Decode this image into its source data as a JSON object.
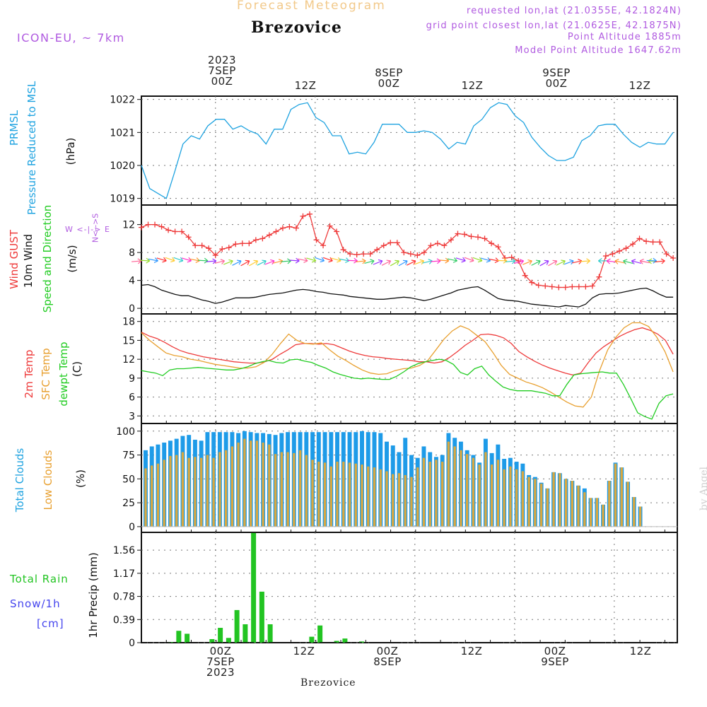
{
  "header": {
    "title": "Forecast Meteogram",
    "location": "Brezovice",
    "model": "ICON-EU, ~ 7km",
    "requested": "requested lon,lat (21.0355E, 42.1824N)",
    "gridpoint": "grid point closest lon,lat (21.0625E, 42.1875N)",
    "altitude": "Point Altitude 1885m",
    "model_altitude": "Model Point Altitude 1647.62m"
  },
  "top_ticks": [
    {
      "line1": "2023",
      "line2": "7SEP",
      "line3": "00Z"
    },
    {
      "line1": "",
      "line2": "",
      "line3": "12Z"
    },
    {
      "line1": "",
      "line2": "8SEP",
      "line3": "00Z"
    },
    {
      "line1": "",
      "line2": "",
      "line3": "12Z"
    },
    {
      "line1": "",
      "line2": "9SEP",
      "line3": "00Z"
    },
    {
      "line1": "",
      "line2": "",
      "line3": "12Z"
    }
  ],
  "bottom_ticks": [
    {
      "line1": "00Z",
      "line2": "7SEP",
      "line3": "2023"
    },
    {
      "line1": "12Z",
      "line2": "",
      "line3": ""
    },
    {
      "line1": "00Z",
      "line2": "8SEP",
      "line3": ""
    },
    {
      "line1": "12Z",
      "line2": "",
      "line3": ""
    },
    {
      "line1": "00Z",
      "line2": "9SEP",
      "line3": ""
    },
    {
      "line1": "12Z",
      "line2": "",
      "line3": ""
    }
  ],
  "labels": {
    "pressure_1": "PRMSL",
    "pressure_2": "Pressure Reduced to MSL",
    "pressure_unit": "(hPa)",
    "wind_gust": "Wind GUST",
    "wind_10m": "10m Wind",
    "wind_dir": "Speed and Direction",
    "wind_unit": "(m/s)",
    "compass_ns": "N<-->S",
    "compass_we": "W <-|-> E",
    "temp_2m": "2m Temp",
    "temp_sfc": "SFC Temp",
    "temp_dew": "dewpt Temp",
    "temp_unit": "(C)",
    "cloud_total": "Total Clouds",
    "cloud_low": "Low Clouds",
    "cloud_unit": "(%)",
    "rain_total": "Total  Rain",
    "snow": "Snow/1h",
    "snow_unit": "[cm]",
    "precip": "1hr Precip (mm)"
  },
  "footer": "Brezovice",
  "watermark": "by Angel",
  "colors": {
    "pressure": "#1fa3e0",
    "gust": "#ee3a3a",
    "wind10": "#111111",
    "t2m": "#ee3a3a",
    "tsfc": "#e8a030",
    "tdew": "#22cc22",
    "cloud_total": "#1e9be8",
    "cloud_low": "#d9a840",
    "rain": "#22c422",
    "snow": "#4444ee",
    "header_purple": "#b05ae0",
    "header_orange": "#f2c98a"
  },
  "chart_data": [
    {
      "type": "line",
      "panel": "pressure",
      "x_unit": "hours since 2023-09-06 15Z",
      "ylabel": "(hPa)",
      "yticks": [
        1019,
        1020,
        1021,
        1022
      ],
      "ylim": [
        1018.8,
        1022.1
      ],
      "series": [
        {
          "name": "PRMSL",
          "x": [
            0,
            1,
            2,
            3,
            4,
            5,
            6,
            7,
            8,
            9,
            10,
            11,
            12,
            13,
            14,
            15,
            16,
            17,
            18,
            19,
            20,
            21,
            22,
            23,
            24,
            25,
            26,
            27,
            28,
            29,
            30,
            31,
            32,
            33,
            34,
            35,
            36,
            37,
            38,
            39,
            40,
            41,
            42,
            43,
            44,
            45,
            46,
            47,
            48,
            49,
            50,
            51,
            52,
            53,
            54,
            55,
            56,
            57,
            58,
            59,
            60,
            61,
            62,
            63,
            64
          ],
          "values": [
            1020.0,
            1019.3,
            1019.15,
            1019.0,
            1019.8,
            1020.65,
            1020.9,
            1020.8,
            1021.2,
            1021.4,
            1021.4,
            1021.1,
            1021.2,
            1021.05,
            1020.95,
            1020.65,
            1021.1,
            1021.1,
            1021.7,
            1021.85,
            1021.9,
            1021.45,
            1021.3,
            1020.9,
            1020.9,
            1020.35,
            1020.4,
            1020.35,
            1020.7,
            1021.25,
            1021.25,
            1021.25,
            1021.0,
            1021.0,
            1021.05,
            1021.0,
            1020.8,
            1020.5,
            1020.7,
            1020.65,
            1021.2,
            1021.4,
            1021.75,
            1021.9,
            1021.85,
            1021.5,
            1021.3,
            1020.85,
            1020.55,
            1020.3,
            1020.15,
            1020.15,
            1020.25,
            1020.75,
            1020.9,
            1021.2,
            1021.25,
            1021.25,
            1020.95,
            1020.7,
            1020.55,
            1020.7,
            1020.65,
            1020.65,
            1021.0
          ]
        }
      ]
    },
    {
      "type": "line",
      "panel": "wind",
      "x_unit": "hours since 2023-09-06 15Z",
      "ylabel": "(m/s)",
      "yticks": [
        0,
        4,
        8,
        12
      ],
      "ylim": [
        -0.8,
        14.8
      ],
      "series": [
        {
          "name": "Wind GUST",
          "marker": "+",
          "values": [
            11.6,
            12.0,
            12.0,
            11.7,
            11.2,
            11.0,
            11.0,
            10.2,
            9.0,
            9.0,
            8.6,
            7.6,
            8.5,
            8.7,
            9.2,
            9.3,
            9.3,
            9.8,
            10.0,
            10.5,
            11.0,
            11.5,
            11.7,
            11.5,
            13.2,
            13.5,
            9.8,
            9.0,
            11.8,
            11.0,
            8.4,
            7.8,
            7.7,
            7.8,
            7.8,
            8.4,
            9.0,
            9.4,
            9.4,
            8.0,
            7.8,
            7.6,
            8.0,
            9.0,
            9.3,
            9.0,
            9.8,
            10.7,
            10.6,
            10.3,
            10.2,
            10.0,
            9.3,
            8.8,
            7.2,
            7.3,
            6.8,
            4.7,
            3.7,
            3.3,
            3.2,
            3.1,
            3.0,
            3.0,
            3.1,
            3.1,
            3.1,
            3.2,
            4.5,
            7.5,
            7.8,
            8.2,
            8.6,
            9.2,
            10.0,
            9.6,
            9.5,
            9.5,
            7.8,
            7.2
          ]
        },
        {
          "name": "10m Wind",
          "values": [
            3.3,
            3.4,
            3.1,
            2.6,
            2.3,
            2.0,
            1.8,
            1.8,
            1.5,
            1.2,
            1.0,
            0.7,
            0.9,
            1.2,
            1.5,
            1.5,
            1.5,
            1.6,
            1.8,
            2.0,
            2.1,
            2.2,
            2.4,
            2.6,
            2.7,
            2.6,
            2.4,
            2.3,
            2.1,
            2.0,
            1.9,
            1.7,
            1.6,
            1.5,
            1.4,
            1.3,
            1.3,
            1.4,
            1.5,
            1.6,
            1.5,
            1.3,
            1.1,
            1.3,
            1.6,
            1.9,
            2.2,
            2.6,
            2.8,
            3.0,
            3.1,
            2.6,
            2.0,
            1.4,
            1.2,
            1.1,
            1.0,
            0.8,
            0.6,
            0.5,
            0.4,
            0.3,
            0.2,
            0.4,
            0.3,
            0.2,
            0.6,
            1.5,
            2.0,
            2.1,
            2.1,
            2.2,
            2.4,
            2.6,
            2.8,
            2.9,
            2.5,
            2.0,
            1.6,
            1.6
          ]
        }
      ],
      "arrow_row_value": 6.8
    },
    {
      "type": "line",
      "panel": "temperature",
      "x_unit": "hours since 2023-09-06 15Z",
      "ylabel": "(C)",
      "yticks": [
        3,
        6,
        9,
        12,
        15,
        18
      ],
      "ylim": [
        1.8,
        19.2
      ],
      "series": [
        {
          "name": "2m Temp",
          "values": [
            16.3,
            15.7,
            15.3,
            14.7,
            14.0,
            13.4,
            13.0,
            12.7,
            12.4,
            12.2,
            12.0,
            11.8,
            11.6,
            11.5,
            11.4,
            11.4,
            11.6,
            12.0,
            12.8,
            13.5,
            14.3,
            14.5,
            14.5,
            14.4,
            14.5,
            14.3,
            13.8,
            13.3,
            12.9,
            12.6,
            12.4,
            12.3,
            12.1,
            12.0,
            11.9,
            11.8,
            11.6,
            11.6,
            11.4,
            11.6,
            12.3,
            13.2,
            14.2,
            15.0,
            15.9,
            16.0,
            15.8,
            15.4,
            14.5,
            13.2,
            12.4,
            11.7,
            11.1,
            10.6,
            10.2,
            9.8,
            9.5,
            9.8,
            11.5,
            13.0,
            14.0,
            14.8,
            15.6,
            16.2,
            16.7,
            17.0,
            16.6,
            16.0,
            15.0,
            12.8
          ]
        },
        {
          "name": "SFC Temp",
          "values": [
            16.2,
            15.0,
            14.0,
            13.0,
            12.6,
            12.4,
            12.0,
            11.8,
            11.5,
            11.2,
            11.0,
            10.8,
            10.6,
            10.6,
            10.8,
            11.5,
            12.8,
            14.5,
            16.0,
            15.0,
            14.5,
            14.4,
            14.6,
            13.5,
            12.5,
            11.8,
            11.0,
            10.3,
            9.8,
            9.6,
            9.7,
            10.2,
            10.5,
            10.6,
            11.0,
            11.8,
            13.5,
            15.2,
            16.5,
            17.3,
            16.8,
            15.8,
            14.8,
            13.0,
            11.0,
            9.6,
            9.0,
            8.4,
            8.0,
            7.5,
            6.8,
            6.0,
            5.2,
            4.6,
            4.4,
            6.0,
            10.2,
            13.5,
            15.5,
            17.0,
            17.8,
            17.8,
            17.2,
            15.5,
            13.2,
            10.0
          ]
        },
        {
          "name": "dewpt Temp",
          "values": [
            10.2,
            10.0,
            9.8,
            9.4,
            10.3,
            10.5,
            10.5,
            10.6,
            10.7,
            10.6,
            10.5,
            10.4,
            10.3,
            10.3,
            10.5,
            10.8,
            11.3,
            11.6,
            11.8,
            11.5,
            11.4,
            11.9,
            12.0,
            11.7,
            11.5,
            11.0,
            10.6,
            10.0,
            9.6,
            9.3,
            9.0,
            8.9,
            9.0,
            8.9,
            8.8,
            8.8,
            9.3,
            10.0,
            10.8,
            11.3,
            11.6,
            11.8,
            12.0,
            11.8,
            11.2,
            9.9,
            9.5,
            10.5,
            10.9,
            9.5,
            8.5,
            7.6,
            7.2,
            7.0,
            7.0,
            7.0,
            6.8,
            6.6,
            6.2,
            6.2,
            8.0,
            9.5,
            9.7,
            9.8,
            9.9,
            10.0,
            9.8,
            9.8,
            8.0,
            5.8,
            3.5,
            2.9,
            2.5,
            5.0,
            6.2,
            6.5
          ]
        }
      ]
    },
    {
      "type": "bar",
      "panel": "clouds",
      "x_unit": "hours since 2023-09-06 15Z",
      "ylabel": "(%)",
      "yticks": [
        0,
        25,
        50,
        75,
        100
      ],
      "ylim": [
        -6,
        108
      ],
      "series": [
        {
          "name": "Total Clouds",
          "values": [
            80,
            84,
            86,
            88,
            90,
            92,
            95,
            96,
            91,
            90,
            99,
            99,
            99,
            99,
            99,
            98,
            100,
            99,
            98,
            98,
            97,
            96,
            98,
            99,
            99,
            99,
            99,
            99,
            99,
            99,
            99,
            99,
            99,
            99,
            99,
            100,
            99,
            99,
            98,
            89,
            85,
            78,
            93,
            75,
            72,
            84,
            78,
            73,
            75,
            98,
            93,
            89,
            80,
            75,
            67,
            92,
            77,
            86,
            71,
            72,
            68,
            66,
            54,
            52,
            46,
            40,
            57,
            56,
            50,
            48,
            43,
            40,
            30,
            30,
            23,
            48,
            67,
            62,
            47,
            31,
            21,
            0,
            0,
            0,
            0,
            0
          ]
        },
        {
          "name": "Low Clouds",
          "values": [
            61,
            64,
            66,
            70,
            74,
            75,
            78,
            72,
            73,
            72,
            75,
            72,
            78,
            80,
            84,
            88,
            92,
            90,
            90,
            88,
            86,
            76,
            78,
            78,
            77,
            80,
            75,
            70,
            68,
            67,
            63,
            68,
            68,
            67,
            66,
            65,
            63,
            62,
            60,
            58,
            55,
            56,
            54,
            52,
            62,
            72,
            68,
            70,
            68,
            89,
            84,
            80,
            76,
            72,
            65,
            78,
            65,
            70,
            60,
            63,
            60,
            58,
            52,
            50,
            45,
            40,
            57,
            56,
            50,
            48,
            43,
            36,
            30,
            30,
            23,
            48,
            66,
            62,
            47,
            31,
            21,
            0,
            0,
            0,
            0,
            0
          ]
        }
      ]
    },
    {
      "type": "bar",
      "panel": "precipitation",
      "x_unit": "hours since 2023-09-06 15Z",
      "ylabel": "1hr Precip (mm)",
      "yticks": [
        0,
        0.39,
        0.78,
        1.17,
        1.56
      ],
      "ylim": [
        0,
        1.86
      ],
      "series": [
        {
          "name": "Total Rain",
          "x": [
            3,
            4,
            5,
            8,
            9,
            10,
            11,
            12,
            13,
            14,
            15,
            20,
            21,
            23,
            24,
            26
          ],
          "values": [
            0.01,
            0.2,
            0.15,
            0.06,
            0.25,
            0.08,
            0.55,
            0.31,
            1.85,
            0.86,
            0.31,
            0.1,
            0.29,
            0.03,
            0.07,
            0.02
          ]
        }
      ]
    }
  ]
}
